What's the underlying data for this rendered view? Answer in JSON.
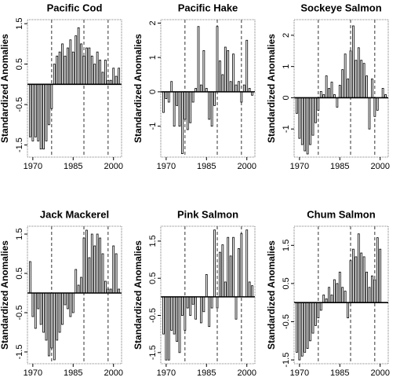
{
  "chart_data": [
    {
      "type": "bar",
      "title": "Pacific Cod",
      "y_label": "Standardized Anomalies",
      "x": [
        1969,
        1970,
        1971,
        1972,
        1973,
        1974,
        1975,
        1976,
        1977,
        1978,
        1979,
        1980,
        1981,
        1982,
        1983,
        1984,
        1985,
        1986,
        1987,
        1988,
        1989,
        1990,
        1991,
        1992,
        1993,
        1994,
        1995,
        1996,
        1997,
        1998,
        1999,
        2000,
        2001,
        2002
      ],
      "values": [
        -1.3,
        -1.4,
        -1.3,
        -1.4,
        -1.6,
        -1.6,
        -1.4,
        -1.0,
        -0.6,
        0.5,
        0.7,
        0.8,
        1.0,
        0.7,
        0.9,
        1.1,
        0.8,
        1.2,
        1.4,
        1.0,
        0.7,
        0.9,
        0.9,
        0.7,
        0.5,
        0.8,
        0.6,
        0.3,
        0.6,
        0.1,
        0.1,
        0.4,
        0.2,
        0.4
      ],
      "xlim": [
        1968,
        2003
      ],
      "ylim": [
        -1.8,
        1.6
      ],
      "xticks": [
        1970,
        1985,
        2000
      ],
      "yticks": [
        -1.5,
        -0.5,
        0.5,
        1.5
      ],
      "reference_lines": [
        1977,
        1989,
        1998
      ],
      "color": "#000000"
    },
    {
      "type": "bar",
      "title": "Pacific Hake",
      "y_label": "Standardized Anomalies",
      "x": [
        1969,
        1970,
        1971,
        1972,
        1973,
        1974,
        1975,
        1976,
        1977,
        1978,
        1979,
        1980,
        1981,
        1982,
        1983,
        1984,
        1985,
        1986,
        1987,
        1988,
        1989,
        1990,
        1991,
        1992,
        1993,
        1994,
        1995,
        1996,
        1997,
        1998,
        1999,
        2000,
        2001,
        2002
      ],
      "values": [
        -0.6,
        -0.2,
        -0.3,
        0.3,
        -1.0,
        -0.4,
        -1.0,
        -1.8,
        -0.8,
        -1.1,
        -0.9,
        -0.3,
        0.1,
        1.9,
        0.2,
        1.2,
        0.1,
        -0.8,
        -1.0,
        -0.4,
        1.9,
        0.9,
        0.5,
        1.3,
        1.2,
        0.3,
        1.1,
        0.2,
        0.3,
        -0.3,
        0.2,
        1.5,
        0.1,
        -0.1
      ],
      "xlim": [
        1968,
        2003
      ],
      "ylim": [
        -1.9,
        2.1
      ],
      "xticks": [
        1970,
        1985,
        2000
      ],
      "yticks": [
        -1,
        0,
        1,
        2
      ],
      "reference_lines": [
        1977,
        1989,
        1998
      ],
      "color": "#000000"
    },
    {
      "type": "bar",
      "title": "Sockeye Salmon",
      "y_label": "Standardized Anomalies",
      "x": [
        1969,
        1970,
        1971,
        1972,
        1973,
        1974,
        1975,
        1976,
        1977,
        1978,
        1979,
        1980,
        1981,
        1982,
        1983,
        1984,
        1985,
        1986,
        1987,
        1988,
        1989,
        1990,
        1991,
        1992,
        1993,
        1994,
        1995,
        1996,
        1997,
        1998,
        1999,
        2000,
        2001,
        2002
      ],
      "values": [
        -0.5,
        -1.3,
        -1.5,
        -1.7,
        -1.8,
        -1.5,
        -1.2,
        -0.8,
        -0.4,
        0.2,
        0.1,
        0.7,
        0.3,
        0.5,
        0.1,
        -0.3,
        0.4,
        0.9,
        1.4,
        0.6,
        1.5,
        2.3,
        1.2,
        1.6,
        1.2,
        1.1,
        0.7,
        -1.0,
        0.6,
        -0.6,
        -0.4,
        0.0,
        0.3,
        0.1
      ],
      "xlim": [
        1968,
        2003
      ],
      "ylim": [
        -1.9,
        2.5
      ],
      "xticks": [
        1970,
        1985,
        2000
      ],
      "yticks": [
        -1,
        0,
        1,
        2
      ],
      "reference_lines": [
        1977,
        1989,
        1998
      ],
      "color": "#000000"
    },
    {
      "type": "bar",
      "title": "Jack Mackerel",
      "y_label": "Standardized Anomalies",
      "x": [
        1969,
        1970,
        1971,
        1972,
        1973,
        1974,
        1975,
        1976,
        1977,
        1978,
        1979,
        1980,
        1981,
        1982,
        1983,
        1984,
        1985,
        1986,
        1987,
        1988,
        1989,
        1990,
        1991,
        1992,
        1993,
        1994,
        1995,
        1996,
        1997,
        1998,
        1999,
        2000,
        2001,
        2002
      ],
      "values": [
        0.8,
        -0.6,
        -0.9,
        -0.4,
        -0.8,
        -1.0,
        -1.2,
        -1.6,
        -1.4,
        -1.7,
        -1.2,
        -1.0,
        -0.8,
        -0.3,
        -0.4,
        -0.6,
        -0.5,
        0.6,
        0.2,
        0.4,
        1.4,
        1.6,
        0.9,
        1.5,
        1.2,
        1.5,
        1.4,
        1.0,
        0.3,
        0.1,
        0.1,
        1.2,
        1.0,
        0.1
      ],
      "xlim": [
        1968,
        2003
      ],
      "ylim": [
        -1.8,
        1.7
      ],
      "xticks": [
        1970,
        1985,
        2000
      ],
      "yticks": [
        -1.5,
        -0.5,
        0.5,
        1.5
      ],
      "reference_lines": [
        1977,
        1989,
        1998
      ],
      "color": "#000000"
    },
    {
      "type": "bar",
      "title": "Pink Salmon",
      "y_label": "Standardized Anomalies",
      "x": [
        1969,
        1970,
        1971,
        1972,
        1973,
        1974,
        1975,
        1976,
        1977,
        1978,
        1979,
        1980,
        1981,
        1982,
        1983,
        1984,
        1985,
        1986,
        1987,
        1988,
        1989,
        1990,
        1991,
        1992,
        1993,
        1994,
        1995,
        1996,
        1997,
        1998,
        1999,
        2000,
        2001,
        2002
      ],
      "values": [
        -1.0,
        -1.7,
        -1.7,
        -0.9,
        -1.0,
        -1.2,
        -1.5,
        -0.5,
        -0.9,
        -0.3,
        -0.5,
        -0.2,
        -0.6,
        0.0,
        -0.7,
        -0.4,
        0.6,
        -0.8,
        -0.3,
        1.8,
        -0.3,
        1.2,
        1.4,
        0.4,
        1.6,
        1.1,
        1.6,
        -0.6,
        1.3,
        1.7,
        0.0,
        1.8,
        0.4,
        0.3
      ],
      "xlim": [
        1968,
        2003
      ],
      "ylim": [
        -1.8,
        1.9
      ],
      "xticks": [
        1970,
        1985,
        2000
      ],
      "yticks": [
        -1.5,
        -0.5,
        0.5,
        1.5
      ],
      "reference_lines": [
        1977,
        1989,
        1998
      ],
      "color": "#000000"
    },
    {
      "type": "bar",
      "title": "Chum Salmon",
      "y_label": "Standardized Anomalies",
      "x": [
        1969,
        1970,
        1971,
        1972,
        1973,
        1974,
        1975,
        1976,
        1977,
        1978,
        1979,
        1980,
        1981,
        1982,
        1983,
        1984,
        1985,
        1986,
        1987,
        1988,
        1989,
        1990,
        1991,
        1992,
        1993,
        1994,
        1995,
        1996,
        1997,
        1998,
        1999,
        2000,
        2001,
        2002
      ],
      "values": [
        -1.3,
        -1.5,
        -1.4,
        -1.3,
        -1.2,
        -1.0,
        -0.8,
        -0.6,
        -0.4,
        -0.2,
        0.2,
        0.1,
        0.4,
        0.2,
        0.6,
        0.5,
        0.8,
        0.4,
        0.3,
        -0.4,
        1.1,
        1.4,
        1.2,
        1.8,
        1.3,
        1.2,
        0.8,
        0.4,
        0.7,
        0.6,
        1.7,
        1.4,
        0.0,
        0.0
      ],
      "xlim": [
        1968,
        2003
      ],
      "ylim": [
        -1.6,
        2.0
      ],
      "xticks": [
        1970,
        1985,
        2000
      ],
      "yticks": [
        -1.5,
        -0.5,
        0.5,
        1.5
      ],
      "reference_lines": [
        1977,
        1989,
        1998
      ],
      "color": "#000000"
    }
  ]
}
